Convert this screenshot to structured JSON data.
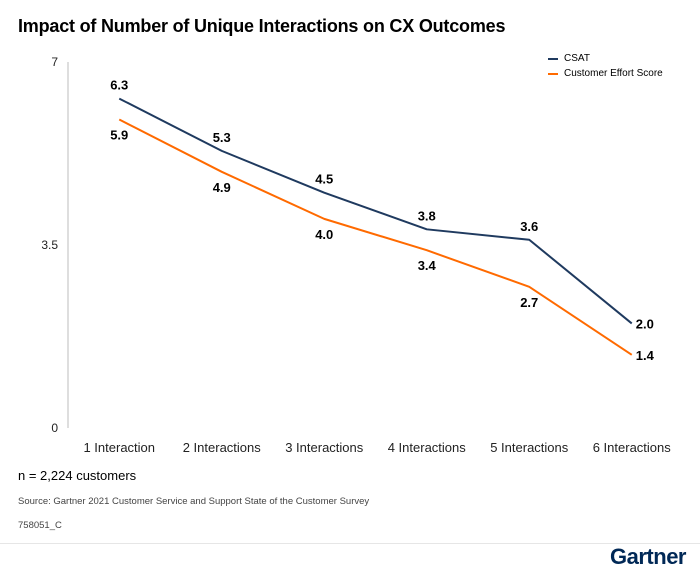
{
  "title": "Impact of Number of Unique Interactions on CX Outcomes",
  "note": "n = 2,224 customers",
  "source": "Source: Gartner 2021 Customer Service and Support State of the Customer Survey",
  "code": "758051_C",
  "brand": "Gartner",
  "chart_data": {
    "type": "line",
    "categories": [
      "1 Interaction",
      "2 Interactions",
      "3 Interactions",
      "4 Interactions",
      "5 Interactions",
      "6 Interactions"
    ],
    "series": [
      {
        "name": "CSAT",
        "values": [
          6.3,
          5.3,
          4.5,
          3.8,
          3.6,
          2.0
        ],
        "color": "#1f3a5f",
        "label_position": "above"
      },
      {
        "name": "Customer Effort Score",
        "values": [
          5.9,
          4.9,
          4.0,
          3.4,
          2.7,
          1.4
        ],
        "color": "#ff6a00",
        "label_position": "below"
      }
    ],
    "yticks": [
      "0",
      "3.5",
      "7"
    ],
    "ylim": [
      0,
      7
    ],
    "xlabel": "",
    "ylabel": "",
    "grid": false,
    "legend": "top-right"
  }
}
